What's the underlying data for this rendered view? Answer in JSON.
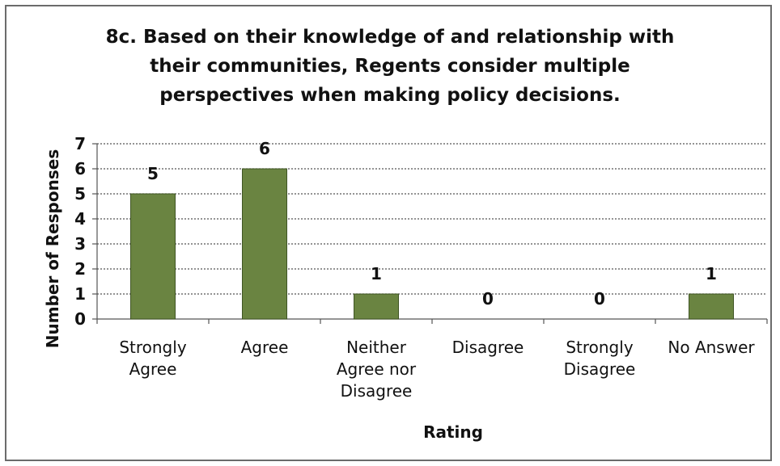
{
  "chart_data": {
    "type": "bar",
    "title_lines": [
      "8c. Based on their knowledge of and relationship with",
      "their communities, Regents consider multiple",
      "perspectives when making policy decisions."
    ],
    "xlabel": "Rating",
    "ylabel": "Number of Responses",
    "ylim": [
      0,
      7
    ],
    "y_ticks": [
      0,
      1,
      2,
      3,
      4,
      5,
      6,
      7
    ],
    "categories": [
      [
        "Strongly",
        "Agree"
      ],
      [
        "Agree"
      ],
      [
        "Neither",
        "Agree nor",
        "Disagree"
      ],
      [
        "Disagree"
      ],
      [
        "Strongly",
        "Disagree"
      ],
      [
        "No Answer"
      ]
    ],
    "values": [
      5,
      6,
      1,
      0,
      0,
      1
    ],
    "data_labels": [
      "5",
      "6",
      "1",
      "0",
      "0",
      "1"
    ],
    "grid": "dotted horizontal",
    "bar_color": "#6a8441",
    "bar_edge_color": "#3f5524"
  }
}
